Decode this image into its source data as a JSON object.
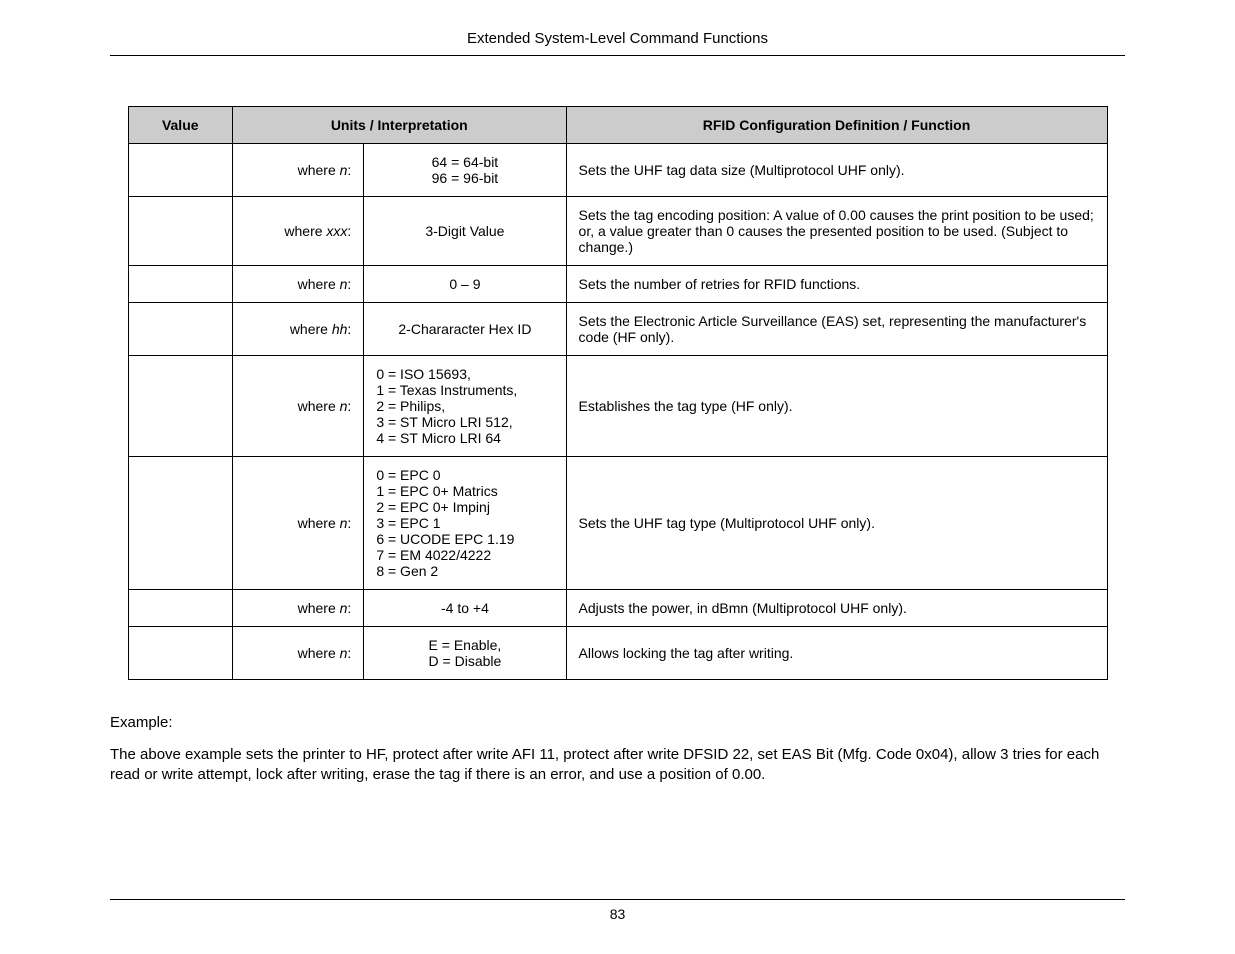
{
  "header": {
    "title": "Extended System-Level Command Functions"
  },
  "table": {
    "columns": {
      "value": "Value",
      "units": "Units / Interpretation",
      "definition": "RFID Configuration Definition / Function"
    },
    "rows": [
      {
        "where_prefix": "where ",
        "where_param": "n",
        "where_suffix": ":",
        "units_align": "center",
        "units": "64 = 64-bit\n96 = 96-bit",
        "definition": "Sets the UHF tag data size (Multiprotocol UHF only)."
      },
      {
        "where_prefix": "where ",
        "where_param": "xxx",
        "where_suffix": ":",
        "units_align": "center",
        "units": "3-Digit Value",
        "definition": "Sets the tag encoding position: A value of 0.00 causes the print position to be used; or, a value greater than 0 causes the presented position to be used. (Subject to change.)"
      },
      {
        "where_prefix": "where ",
        "where_param": "n",
        "where_suffix": ":",
        "units_align": "center",
        "units": "0 – 9",
        "definition": "Sets the number of retries for RFID functions."
      },
      {
        "where_prefix": "where ",
        "where_param": "hh",
        "where_suffix": ":",
        "units_align": "center",
        "units": "2-Chararacter Hex ID",
        "definition": "Sets the Electronic Article Surveillance (EAS) set, representing the manufacturer's code (HF only)."
      },
      {
        "where_prefix": "where ",
        "where_param": "n",
        "where_suffix": ":",
        "units_align": "left",
        "units": "0 = ISO 15693,\n1 = Texas Instruments,\n2 = Philips,\n3 = ST Micro LRI 512,\n4 = ST Micro LRI 64",
        "definition": "Establishes the tag type (HF only)."
      },
      {
        "where_prefix": "where ",
        "where_param": "n",
        "where_suffix": ":",
        "units_align": "left",
        "units": "0 = EPC 0\n1 = EPC 0+ Matrics\n2 = EPC 0+ Impinj\n3 = EPC 1\n6 = UCODE EPC 1.19\n7 = EM 4022/4222\n8 = Gen 2",
        "definition": "Sets the UHF tag type (Multiprotocol UHF only)."
      },
      {
        "where_prefix": "where ",
        "where_param": "n",
        "where_suffix": ":",
        "units_align": "center",
        "units": "-4 to +4",
        "definition": "Adjusts the power, in dBmn (Multiprotocol UHF only)."
      },
      {
        "where_prefix": "where ",
        "where_param": "n",
        "where_suffix": ":",
        "units_align": "center",
        "units": "E = Enable,\nD = Disable",
        "definition": "Allows locking the tag after writing."
      }
    ]
  },
  "example": {
    "label": "Example:",
    "text": "The above example sets the printer to HF, protect after write AFI 11, protect after write DFSID 22, set EAS Bit (Mfg. Code 0x04), allow 3 tries for each read or write attempt, lock after writing, erase the tag if there is an error, and use a position of 0.00."
  },
  "footer": {
    "page_number": "83"
  }
}
